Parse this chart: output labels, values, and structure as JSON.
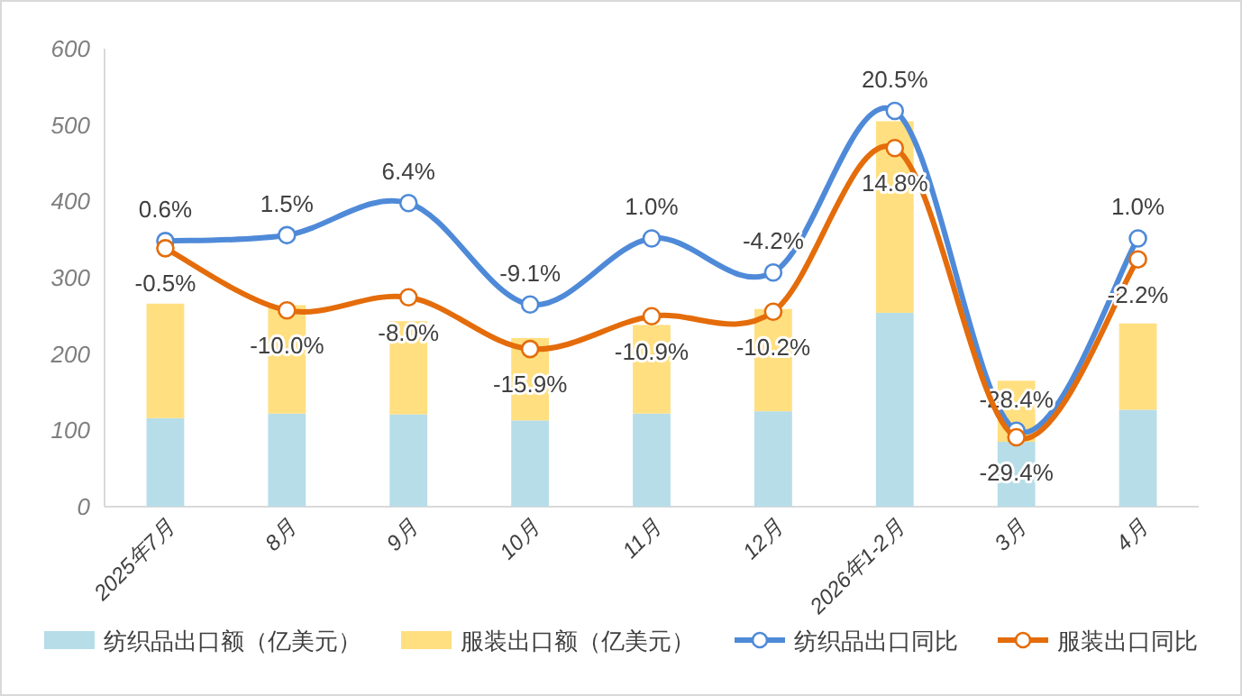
{
  "chart_data": {
    "type": "bar",
    "stacked": true,
    "legend": "bottom",
    "grid": false,
    "categories": [
      "2025年7月",
      "8月",
      "9月",
      "10月",
      "11月",
      "12月",
      "2026年1-2月",
      "3月",
      "4月"
    ],
    "ylim": [
      0,
      600
    ],
    "yticks": [
      0,
      100,
      200,
      300,
      400,
      500,
      600
    ],
    "y2lim": [
      -40,
      30
    ],
    "series": [
      {
        "name": "纺织品出口额（亿美元）",
        "color": "#b7dde8",
        "values": [
          116,
          122,
          121,
          113,
          122,
          125,
          254,
          85,
          127
        ]
      },
      {
        "name": "服装出口额（亿美元）",
        "color": "#ffdf80",
        "values": [
          150,
          142,
          122,
          108,
          116,
          134,
          251,
          80,
          113
        ]
      },
      {
        "name": "纺织品出口同比",
        "type": "line",
        "axis": "y2",
        "marker": "circle",
        "color": "#4f8ad8",
        "values": [
          0.6,
          1.5,
          6.4,
          -9.1,
          1.0,
          -4.2,
          20.5,
          -28.4,
          1.0
        ],
        "value_labels": [
          "0.6%",
          "1.5%",
          "6.4%",
          "-9.1%",
          "1.0%",
          "-4.2%",
          "20.5%",
          "-28.4%",
          "1.0%"
        ]
      },
      {
        "name": "服装出口同比",
        "type": "line",
        "axis": "y2",
        "marker": "circle",
        "color": "#e46c0a",
        "values": [
          -0.5,
          -10.0,
          -8.0,
          -15.9,
          -10.9,
          -10.2,
          14.8,
          -29.4,
          -2.2
        ],
        "value_labels": [
          "-0.5%",
          "-10.0%",
          "-8.0%",
          "-15.9%",
          "-10.9%",
          "-10.2%",
          "14.8%",
          "-29.4%",
          "-2.2%"
        ]
      }
    ]
  }
}
